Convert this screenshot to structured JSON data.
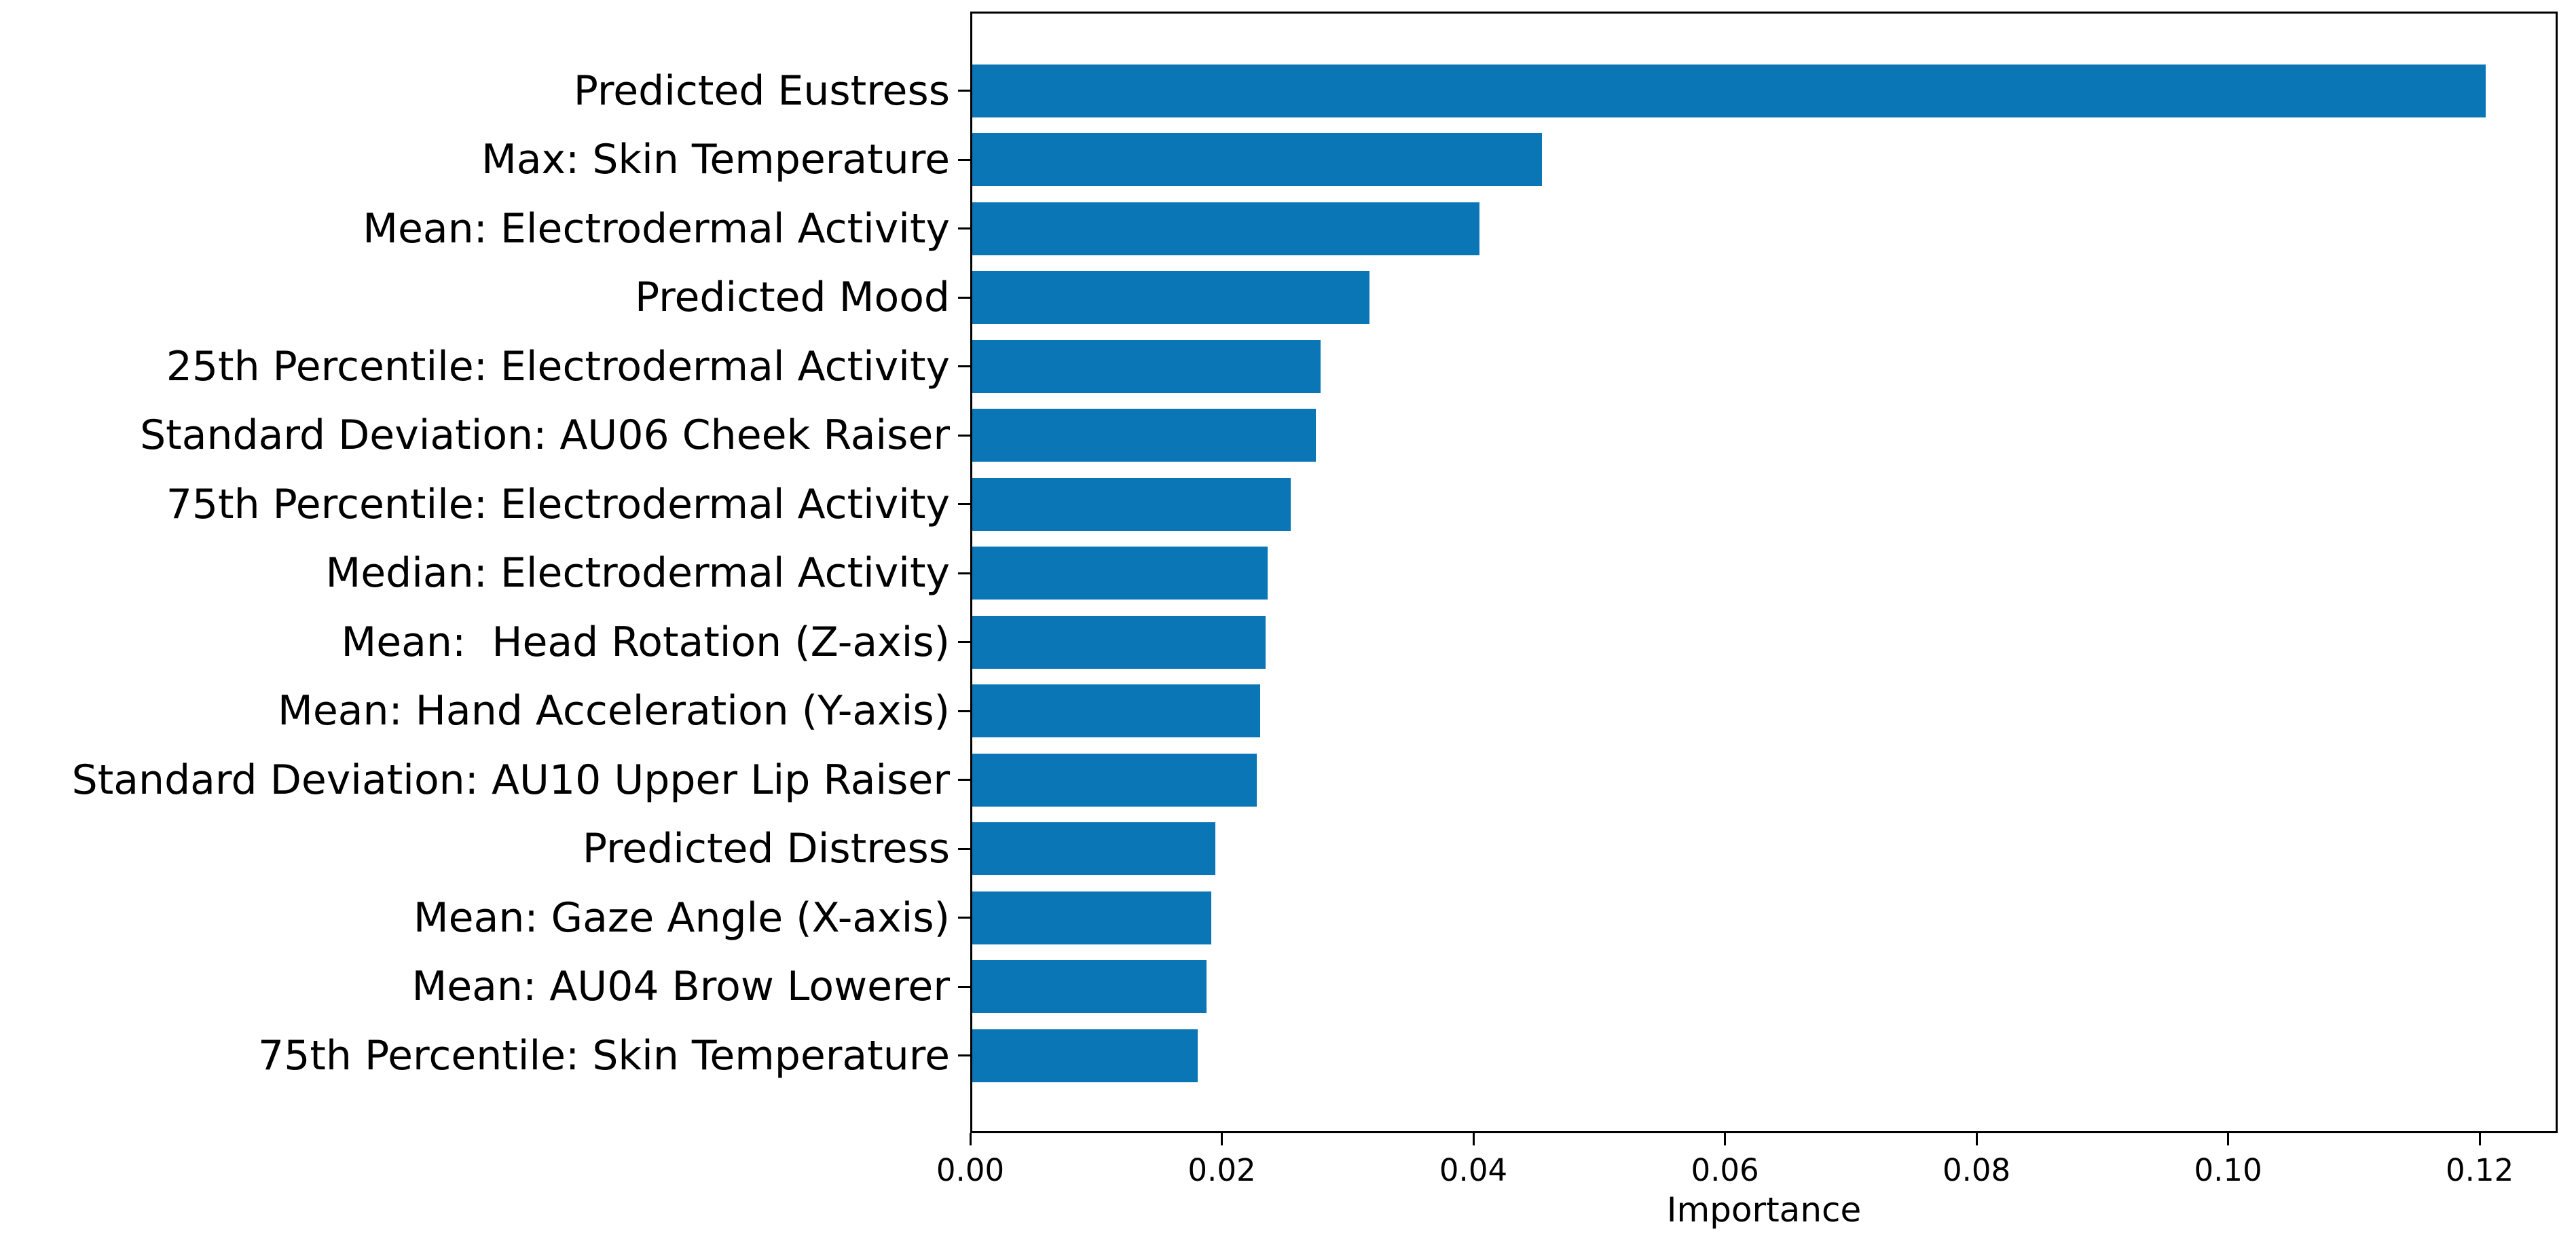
{
  "figure": {
    "background": "#ffffff"
  },
  "chart_data": {
    "type": "bar",
    "orientation": "horizontal",
    "title": "",
    "xlabel": "Importance",
    "ylabel": "",
    "categories": [
      "Predicted Eustress",
      "Max: Skin Temperature",
      "Mean: Electrodermal Activity",
      "Predicted Mood",
      "25th Percentile: Electrodermal Activity",
      "Standard Deviation: AU06 Cheek Raiser",
      "75th Percentile: Electrodermal Activity",
      "Median: Electrodermal Activity",
      "Mean:  Head Rotation (Z-axis)",
      "Mean: Hand Acceleration (Y-axis)",
      "Standard Deviation: AU10 Upper Lip Raiser",
      "Predicted Distress",
      "Mean: Gaze Angle (X-axis)",
      "Mean: AU04 Brow Lowerer",
      "75th Percentile: Skin Temperature"
    ],
    "values": [
      0.1203,
      0.0453,
      0.0403,
      0.0316,
      0.0277,
      0.0273,
      0.0253,
      0.0235,
      0.0233,
      0.0229,
      0.0226,
      0.0193,
      0.019,
      0.0186,
      0.0179
    ],
    "xlim": [
      0,
      0.1262
    ],
    "x_ticks": [
      0,
      0.02,
      0.04,
      0.06,
      0.08,
      0.1,
      0.12
    ],
    "x_tick_labels": [
      "0.00",
      "0.02",
      "0.04",
      "0.06",
      "0.08",
      "0.10",
      "0.12"
    ],
    "grid": false,
    "legend": null,
    "bar_color": "#0b76b6",
    "axis_color": "#000000",
    "text_color": "#000000"
  }
}
